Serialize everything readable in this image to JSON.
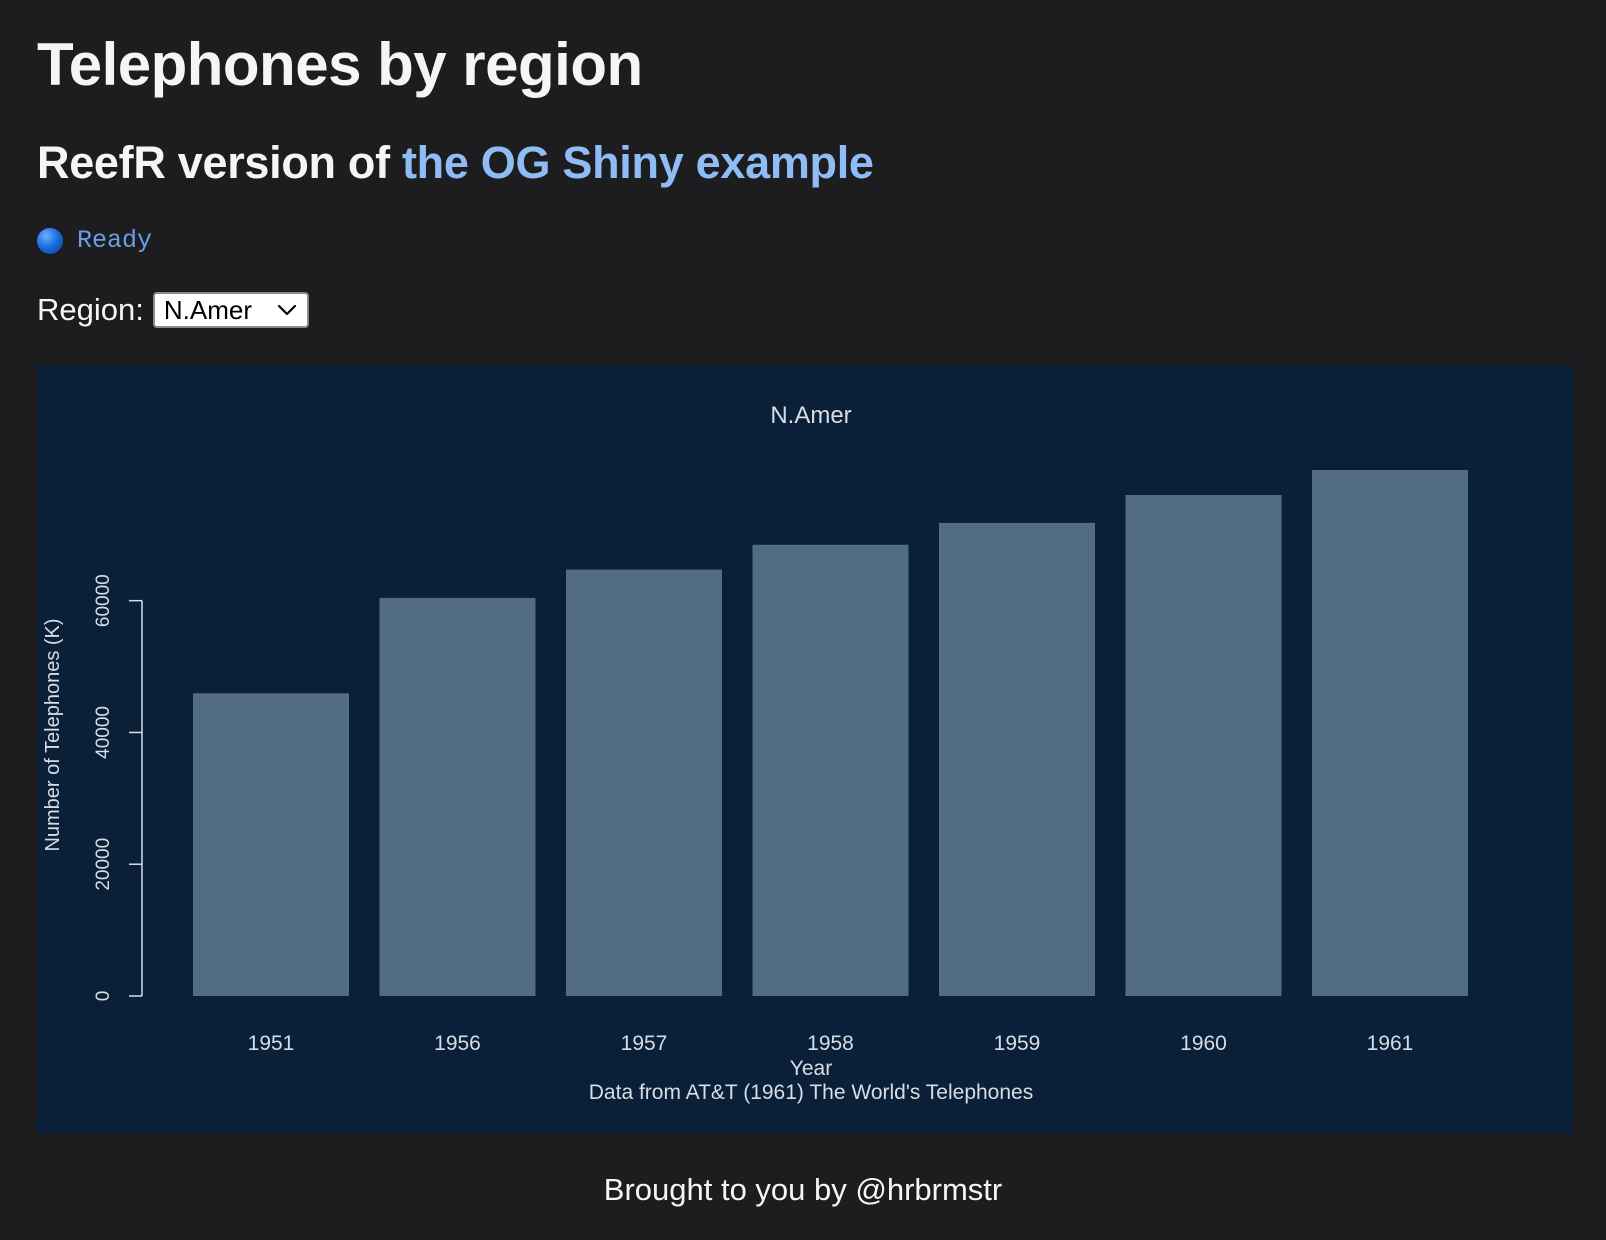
{
  "page": {
    "title": "Telephones by region",
    "subtitle_prefix": "ReefR version of ",
    "subtitle_link": "the OG Shiny example"
  },
  "status": {
    "text": "Ready"
  },
  "region": {
    "label": "Region:",
    "selected": "N.Amer"
  },
  "footer": {
    "text": "Brought to you by @hrbrmstr"
  },
  "colors": {
    "background": "#1d1d1f",
    "plot_background": "#0a1f38",
    "bar": "#526c86",
    "link": "#8fbcf5",
    "status": "#6a9ee8"
  },
  "chart_data": {
    "type": "bar",
    "title": "N.Amer",
    "xlabel": "Year",
    "ylabel": "Number of Telephones (K)",
    "caption": "Data from AT&T (1961) The World's Telephones",
    "categories": [
      "1951",
      "1956",
      "1957",
      "1958",
      "1959",
      "1960",
      "1961"
    ],
    "values": [
      45939,
      60423,
      64721,
      68484,
      71799,
      76036,
      79831
    ],
    "yticks": [
      0,
      20000,
      40000,
      60000
    ],
    "ylim": [
      0,
      79831
    ],
    "grid": false
  }
}
